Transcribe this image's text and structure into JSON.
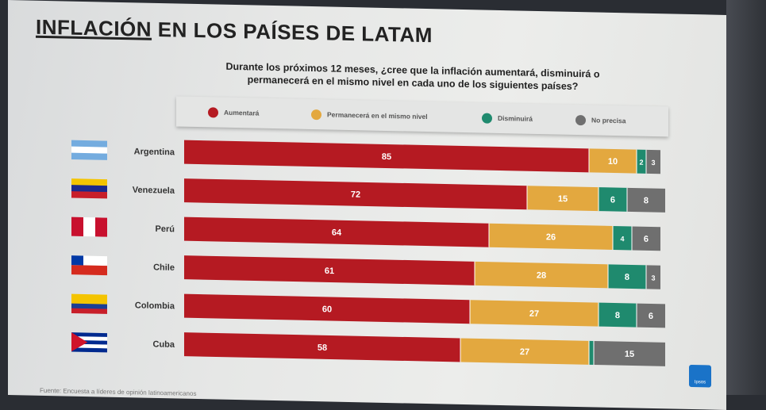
{
  "title_part1": "INFLACIÓN",
  "title_part2": "EN LOS PAÍSES DE LATAM",
  "question_line1": "Durante los próximos 12 meses, ¿cree que la inflación aumentará, disminuirá o",
  "question_line2": "permanecerá en el mismo nivel en cada uno de los siguientes países?",
  "colors": {
    "aumentara": "#b51a22",
    "permanecera": "#e3a83f",
    "disminuira": "#1f8a6e",
    "no_precisa": "#6f6f6f",
    "label_text": "#ffffff"
  },
  "logo_text": "Ipsos",
  "footnote": "Fuente: Encuesta a líderes de opinión latinoamericanos",
  "chart_data": {
    "type": "bar",
    "orientation": "horizontal",
    "stacked": true,
    "title": "Durante los próximos 12 meses, ¿cree que la inflación aumentará, disminuirá o permanecerá en el mismo nivel en cada uno de los siguientes países?",
    "xlim": [
      0,
      100
    ],
    "xlabel": "",
    "ylabel": "",
    "legend_position": "top",
    "categories": [
      "Argentina",
      "Venezuela",
      "Perú",
      "Chile",
      "Colombia",
      "Cuba"
    ],
    "series": [
      {
        "name": "Aumentará",
        "key": "aumentara",
        "values": [
          85,
          72,
          64,
          61,
          60,
          58
        ]
      },
      {
        "name": "Permanecerá en el mismo nivel",
        "key": "permanecera",
        "values": [
          10,
          15,
          26,
          28,
          27,
          27
        ]
      },
      {
        "name": "Disminuirá",
        "key": "disminuira",
        "values": [
          2,
          6,
          4,
          8,
          8,
          1
        ]
      },
      {
        "name": "No precisa",
        "key": "no_precisa",
        "values": [
          3,
          8,
          6,
          3,
          6,
          15
        ]
      }
    ],
    "hidden_labels": [
      [
        5,
        2
      ]
    ]
  }
}
